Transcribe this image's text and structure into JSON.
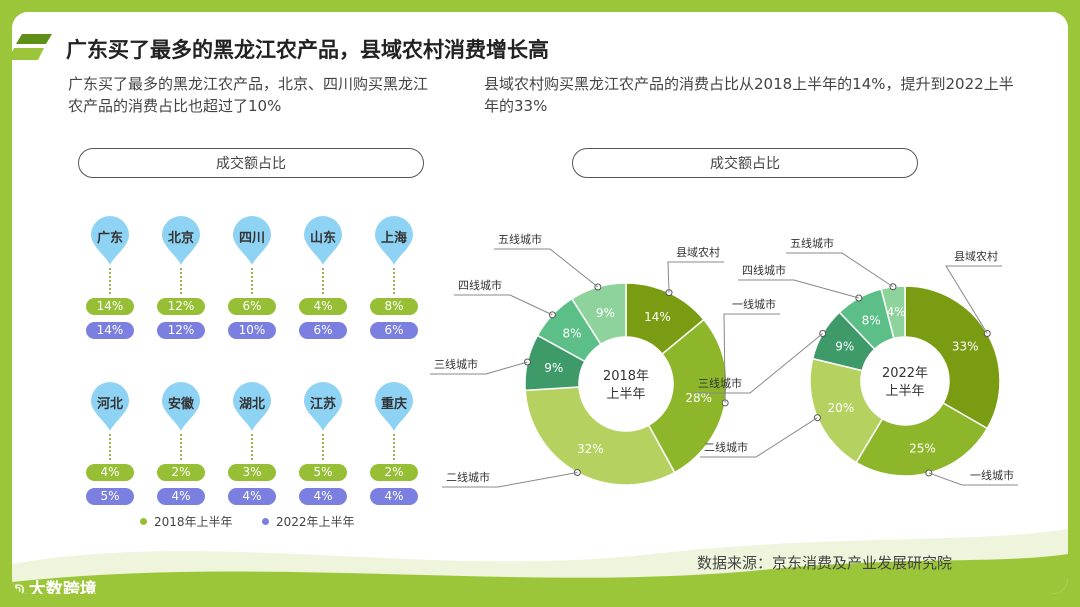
{
  "header": {
    "title": "广东买了最多的黑龙江农产品，县域农村消费增长高"
  },
  "left_panel": {
    "description": "广东买了最多的黑龙江农产品，北京、四川购买黑龙江农产品的消费占比也超过了10%",
    "pill_label": "成交额占比"
  },
  "right_panel": {
    "description": "县域农村购买黑龙江农产品的消费占比从2018上半年的14%，提升到2022上半年的33%",
    "pill_label": "成交额占比"
  },
  "legend": {
    "s2018": "2018年上半年",
    "s2022": "2022年上半年"
  },
  "colors": {
    "s2018": "#97bf35",
    "s2022": "#7b7fe0",
    "pin": "#8fd3f4"
  },
  "footer": {
    "source": "数据来源：京东消费及产业发展研究院",
    "logo_text": "大数跨境"
  },
  "chart_data": [
    {
      "type": "table",
      "columns": [
        "2018年上半年",
        "2022年上半年"
      ],
      "rows": [
        {
          "city": "广东",
          "v2018": "14%",
          "v2022": "14%"
        },
        {
          "city": "北京",
          "v2018": "12%",
          "v2022": "12%"
        },
        {
          "city": "四川",
          "v2018": "6%",
          "v2022": "10%"
        },
        {
          "city": "山东",
          "v2018": "4%",
          "v2022": "6%"
        },
        {
          "city": "上海",
          "v2018": "8%",
          "v2022": "6%"
        },
        {
          "city": "河北",
          "v2018": "4%",
          "v2022": "5%"
        },
        {
          "city": "安徽",
          "v2018": "2%",
          "v2022": "4%"
        },
        {
          "city": "湖北",
          "v2018": "3%",
          "v2022": "4%"
        },
        {
          "city": "江苏",
          "v2018": "5%",
          "v2022": "4%"
        },
        {
          "city": "重庆",
          "v2018": "2%",
          "v2022": "4%"
        }
      ]
    },
    {
      "type": "pie",
      "center_label": [
        "2018年",
        "上半年"
      ],
      "slices": [
        {
          "label": "县域农村",
          "value": 14,
          "color": "#7a9c13"
        },
        {
          "label": "一线城市",
          "value": 28,
          "color": "#8db62a"
        },
        {
          "label": "二线城市",
          "value": 32,
          "color": "#b5d160"
        },
        {
          "label": "三线城市",
          "value": 9,
          "color": "#3f9a6a"
        },
        {
          "label": "四线城市",
          "value": 8,
          "color": "#5cbf88"
        },
        {
          "label": "五线城市",
          "value": 9,
          "color": "#8fd39c"
        }
      ]
    },
    {
      "type": "pie",
      "center_label": [
        "2022年",
        "上半年"
      ],
      "slices": [
        {
          "label": "县域农村",
          "value": 33,
          "color": "#7a9c13"
        },
        {
          "label": "一线城市",
          "value": 25,
          "color": "#8db62a"
        },
        {
          "label": "二线城市",
          "value": 20,
          "color": "#b5d160"
        },
        {
          "label": "三线城市",
          "value": 9,
          "color": "#3f9a6a"
        },
        {
          "label": "四线城市",
          "value": 8,
          "color": "#5cbf88"
        },
        {
          "label": "五线城市",
          "value": 4,
          "color": "#8fd39c"
        }
      ]
    }
  ]
}
